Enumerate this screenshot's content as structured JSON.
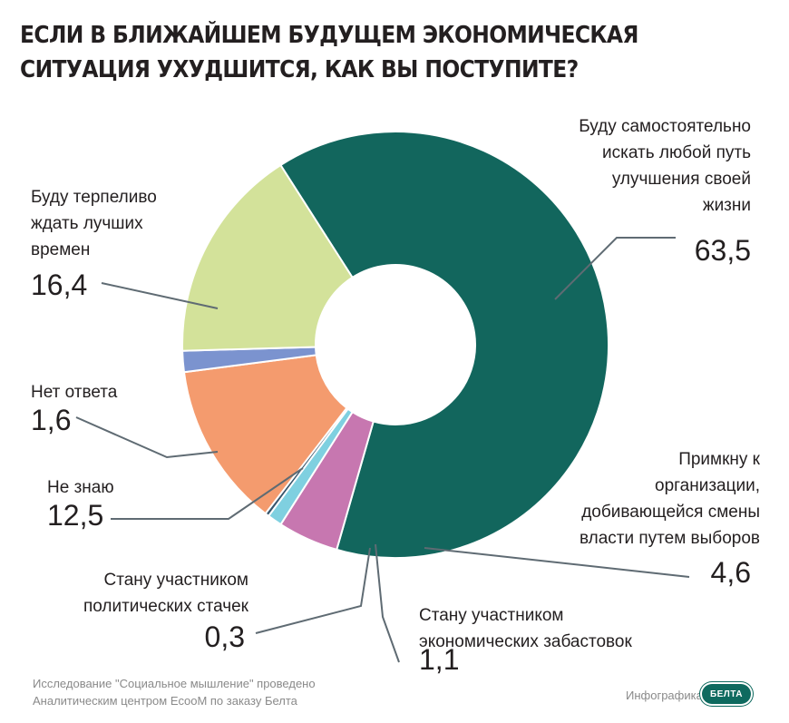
{
  "header": {
    "title_line1": "ЕСЛИ В БЛИЖАЙШЕМ БУДУЩЕМ ЭКОНОМИЧЕСКАЯ",
    "title_line2": "СИТУАЦИЯ УХУДШИТСЯ, КАК ВЫ ПОСТУПИТЕ?"
  },
  "chart_data": {
    "type": "pie",
    "donut": true,
    "start_angle_deg": -122.6,
    "slices": [
      {
        "label_lines": [
          "Буду самостоятельно",
          "искать любой путь",
          "улучшения своей",
          "жизни"
        ],
        "value": 63.5,
        "value_label": "63,5",
        "color": "#12665d"
      },
      {
        "label_lines": [
          "Примкну к",
          "организации,",
          "добивающейся смены",
          "власти путем выборов"
        ],
        "value": 4.6,
        "value_label": "4,6",
        "color": "#c777b0"
      },
      {
        "label_lines": [
          "Стану участником",
          "экономических забастовок"
        ],
        "value": 1.1,
        "value_label": "1,1",
        "color": "#7fd0e0"
      },
      {
        "label_lines": [
          "Стану участником",
          "политических стачек"
        ],
        "value": 0.3,
        "value_label": "0,3",
        "color": "#36546b"
      },
      {
        "label_lines": [
          "Не знаю"
        ],
        "value": 12.5,
        "value_label": "12,5",
        "color": "#f49b6e"
      },
      {
        "label_lines": [
          "Нет ответа"
        ],
        "value": 1.6,
        "value_label": "1,6",
        "color": "#7b93cf"
      },
      {
        "label_lines": [
          "Буду терпеливо",
          "ждать лучших",
          "времен"
        ],
        "value": 16.4,
        "value_label": "16,4",
        "color": "#d3e29a"
      }
    ]
  },
  "footer": {
    "source_line1": "Исследование \"Социальное мышление\" проведено",
    "source_line2": "Аналитическим центром EcooM по заказу Белта",
    "credit": "Инфографика",
    "logo_text": "БЕЛТА"
  }
}
